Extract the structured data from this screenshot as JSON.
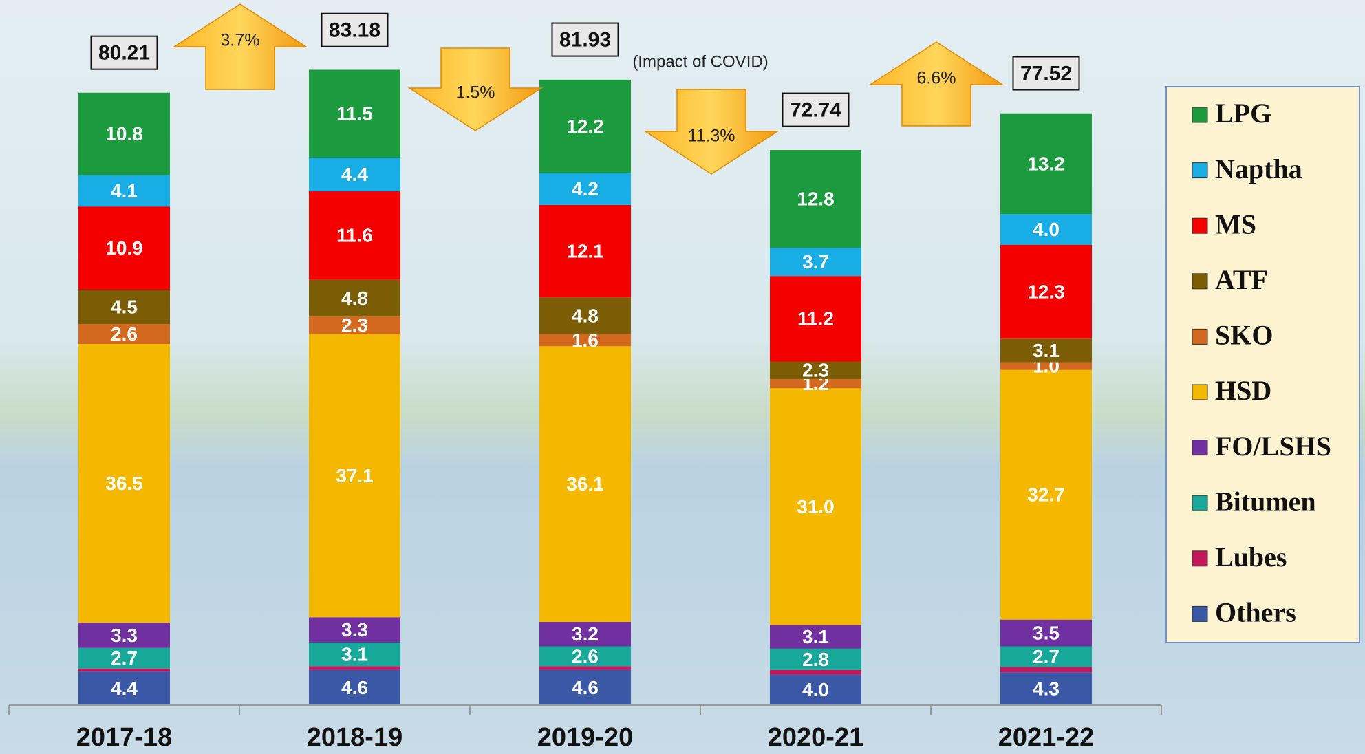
{
  "chart_data": {
    "type": "stacked-bar",
    "categories": [
      "2017-18",
      "2018-19",
      "2019-20",
      "2020-21",
      "2021-22"
    ],
    "series": [
      {
        "name": "Others",
        "color": "#3a58a6",
        "values": [
          4.4,
          4.6,
          4.6,
          4,
          4.3
        ],
        "value_labels": [
          "4.4",
          "4.6",
          "4.6",
          "4.0",
          "4.3"
        ]
      },
      {
        "name": "Lubes",
        "color": "#c2185b",
        "values": [
          0.4,
          0.5,
          0.5,
          0.6,
          0.7
        ]
      },
      {
        "name": "Bitumen",
        "color": "#17a89a",
        "values": [
          2.7,
          3.1,
          2.6,
          2.8,
          2.7
        ]
      },
      {
        "name": "FO/LSHS",
        "color": "#7030a0",
        "values": [
          3.3,
          3.3,
          3.2,
          3.1,
          3.5
        ]
      },
      {
        "name": "HSD",
        "color": "#f5b800",
        "values": [
          36.5,
          37.1,
          36.1,
          31,
          32.7
        ],
        "value_labels": [
          "36.5",
          "37.1",
          "36.1",
          "31.0",
          "32.7"
        ]
      },
      {
        "name": "SKO",
        "color": "#d2691e",
        "values": [
          2.6,
          2.3,
          1.6,
          1.2,
          1
        ],
        "value_labels": [
          "2.6",
          "2.3",
          "1.6",
          "1.2",
          "1.0"
        ]
      },
      {
        "name": "ATF",
        "color": "#7a5d05",
        "values": [
          4.5,
          4.8,
          4.8,
          2.3,
          3.1
        ]
      },
      {
        "name": "MS",
        "color": "#f40000",
        "values": [
          10.9,
          11.6,
          12.1,
          11.2,
          12.3
        ]
      },
      {
        "name": "Naptha",
        "color": "#19ade6",
        "values": [
          4.1,
          4.4,
          4.2,
          3.7,
          4
        ],
        "value_labels": [
          "4.1",
          "4.4",
          "4.2",
          "3.7",
          "4.0"
        ]
      },
      {
        "name": "LPG",
        "color": "#1b9b3d",
        "values": [
          10.8,
          11.5,
          12.2,
          12.8,
          13.2
        ]
      }
    ],
    "totals": [
      80.21,
      83.18,
      81.93,
      72.74,
      77.52
    ],
    "changes": [
      {
        "label": "3.7%",
        "direction": "up"
      },
      {
        "label": "1.5%",
        "direction": "down"
      },
      {
        "label": "11.3%",
        "direction": "down"
      },
      {
        "label": "6.6%",
        "direction": "up"
      }
    ],
    "annotation": "(Impact of COVID)",
    "legend": "right"
  }
}
